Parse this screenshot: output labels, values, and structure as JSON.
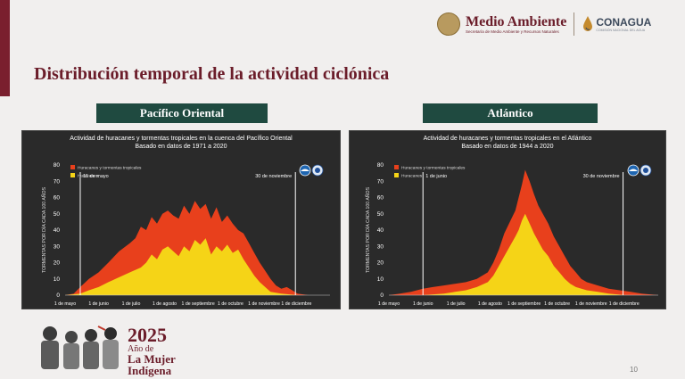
{
  "header": {
    "ministry": "Medio Ambiente",
    "ministry_sub": "Secretaría de Medio Ambiente y Recursos Naturales",
    "agency": "CONAGUA",
    "agency_sub": "COMISIÓN NACIONAL DEL AGUA"
  },
  "page_title": "Distribución temporal de la actividad ciclónica",
  "regions": [
    "Pacífico Oriental",
    "Atlántico"
  ],
  "colors": {
    "storms": "#e8401c",
    "hurricanes": "#f5d417",
    "accent": "#6b1d2a",
    "label_bg": "#1f4a40"
  },
  "chart_data": [
    {
      "type": "area",
      "title": "Actividad de huracanes y tormentas tropicales en la cuenca del Pacífico Oriental",
      "subtitle": "Basado en datos de 1971 a 2020",
      "ylabel": "TORMENTAS POR DÍA CADA 100 AÑOS",
      "ylim": [
        0,
        80
      ],
      "yticks": [
        0,
        10,
        20,
        30,
        40,
        50,
        60,
        70,
        80
      ],
      "xlim": [
        0,
        245
      ],
      "xticks": [
        {
          "day": 0,
          "label": "1 de mayo"
        },
        {
          "day": 31,
          "label": "1 de junio"
        },
        {
          "day": 61,
          "label": "1 de julio"
        },
        {
          "day": 92,
          "label": "1 de agosto"
        },
        {
          "day": 123,
          "label": "1 de septiembre"
        },
        {
          "day": 153,
          "label": "1 de octubre"
        },
        {
          "day": 184,
          "label": "1 de noviembre"
        },
        {
          "day": 214,
          "label": "1 de diciembre"
        }
      ],
      "markers": [
        {
          "day": 14,
          "label": "15 de mayo"
        },
        {
          "day": 213,
          "label": "30 de noviembre"
        }
      ],
      "legend": [
        "Huracanes y tormentas tropicales",
        "Huracanes"
      ],
      "series": [
        {
          "name": "Huracanes y tormentas tropicales",
          "points": [
            [
              0,
              0
            ],
            [
              8,
              1
            ],
            [
              14,
              5
            ],
            [
              22,
              10
            ],
            [
              31,
              14
            ],
            [
              40,
              20
            ],
            [
              50,
              27
            ],
            [
              60,
              32
            ],
            [
              65,
              35
            ],
            [
              70,
              42
            ],
            [
              75,
              40
            ],
            [
              80,
              48
            ],
            [
              85,
              44
            ],
            [
              90,
              50
            ],
            [
              95,
              52
            ],
            [
              100,
              49
            ],
            [
              105,
              47
            ],
            [
              110,
              55
            ],
            [
              115,
              50
            ],
            [
              120,
              58
            ],
            [
              125,
              53
            ],
            [
              130,
              56
            ],
            [
              135,
              47
            ],
            [
              140,
              54
            ],
            [
              145,
              45
            ],
            [
              150,
              49
            ],
            [
              155,
              44
            ],
            [
              160,
              40
            ],
            [
              165,
              38
            ],
            [
              170,
              32
            ],
            [
              175,
              26
            ],
            [
              180,
              20
            ],
            [
              185,
              15
            ],
            [
              190,
              10
            ],
            [
              195,
              6
            ],
            [
              200,
              4
            ],
            [
              205,
              5
            ],
            [
              210,
              3
            ],
            [
              215,
              1
            ],
            [
              225,
              0
            ],
            [
              245,
              0
            ]
          ]
        },
        {
          "name": "Huracanes",
          "points": [
            [
              0,
              0
            ],
            [
              14,
              1
            ],
            [
              22,
              3
            ],
            [
              31,
              5
            ],
            [
              40,
              8
            ],
            [
              50,
              11
            ],
            [
              60,
              14
            ],
            [
              70,
              17
            ],
            [
              75,
              20
            ],
            [
              80,
              25
            ],
            [
              85,
              22
            ],
            [
              90,
              28
            ],
            [
              95,
              30
            ],
            [
              100,
              27
            ],
            [
              105,
              24
            ],
            [
              110,
              30
            ],
            [
              115,
              27
            ],
            [
              120,
              34
            ],
            [
              125,
              31
            ],
            [
              130,
              35
            ],
            [
              135,
              25
            ],
            [
              140,
              30
            ],
            [
              145,
              27
            ],
            [
              150,
              31
            ],
            [
              155,
              26
            ],
            [
              160,
              28
            ],
            [
              165,
              22
            ],
            [
              170,
              17
            ],
            [
              175,
              12
            ],
            [
              180,
              8
            ],
            [
              185,
              5
            ],
            [
              190,
              2
            ],
            [
              200,
              1
            ],
            [
              215,
              0
            ],
            [
              245,
              0
            ]
          ]
        }
      ]
    },
    {
      "type": "area",
      "title": "Actividad de huracanes y tormentas tropicales en el Atlántico",
      "subtitle": "Basado en datos de 1944 a 2020",
      "ylabel": "TORMENTAS POR DÍA CADA 100 AÑOS",
      "ylim": [
        0,
        80
      ],
      "yticks": [
        0,
        10,
        20,
        30,
        40,
        50,
        60,
        70,
        80
      ],
      "xlim": [
        0,
        245
      ],
      "xticks": [
        {
          "day": 0,
          "label": "1 de mayo"
        },
        {
          "day": 31,
          "label": "1 de junio"
        },
        {
          "day": 61,
          "label": "1 de julio"
        },
        {
          "day": 92,
          "label": "1 de agosto"
        },
        {
          "day": 123,
          "label": "1 de septiembre"
        },
        {
          "day": 153,
          "label": "1 de octubre"
        },
        {
          "day": 184,
          "label": "1 de noviembre"
        },
        {
          "day": 214,
          "label": "1 de diciembre"
        }
      ],
      "markers": [
        {
          "day": 31,
          "label": "1 de junio"
        },
        {
          "day": 213,
          "label": "30 de noviembre"
        }
      ],
      "legend": [
        "Huracanes y tormentas tropicales",
        "Huracanes"
      ],
      "series": [
        {
          "name": "Huracanes y tormentas tropicales",
          "points": [
            [
              0,
              0
            ],
            [
              10,
              1
            ],
            [
              20,
              2
            ],
            [
              31,
              4
            ],
            [
              40,
              5
            ],
            [
              50,
              6
            ],
            [
              60,
              7
            ],
            [
              70,
              8
            ],
            [
              80,
              10
            ],
            [
              90,
              14
            ],
            [
              95,
              20
            ],
            [
              100,
              28
            ],
            [
              105,
              38
            ],
            [
              110,
              45
            ],
            [
              115,
              52
            ],
            [
              118,
              60
            ],
            [
              121,
              68
            ],
            [
              124,
              77
            ],
            [
              128,
              70
            ],
            [
              132,
              62
            ],
            [
              136,
              55
            ],
            [
              140,
              50
            ],
            [
              145,
              44
            ],
            [
              150,
              36
            ],
            [
              155,
              30
            ],
            [
              160,
              24
            ],
            [
              165,
              18
            ],
            [
              170,
              14
            ],
            [
              175,
              10
            ],
            [
              180,
              8
            ],
            [
              190,
              6
            ],
            [
              200,
              4
            ],
            [
              210,
              3
            ],
            [
              220,
              2
            ],
            [
              230,
              1
            ],
            [
              245,
              0
            ]
          ]
        },
        {
          "name": "Huracanes",
          "points": [
            [
              0,
              0
            ],
            [
              31,
              0
            ],
            [
              50,
              1
            ],
            [
              60,
              2
            ],
            [
              70,
              3
            ],
            [
              80,
              5
            ],
            [
              90,
              8
            ],
            [
              95,
              12
            ],
            [
              100,
              18
            ],
            [
              105,
              24
            ],
            [
              110,
              30
            ],
            [
              115,
              36
            ],
            [
              118,
              40
            ],
            [
              121,
              46
            ],
            [
              124,
              50
            ],
            [
              128,
              44
            ],
            [
              132,
              38
            ],
            [
              136,
              33
            ],
            [
              140,
              28
            ],
            [
              145,
              24
            ],
            [
              150,
              18
            ],
            [
              155,
              14
            ],
            [
              160,
              10
            ],
            [
              165,
              7
            ],
            [
              170,
              5
            ],
            [
              180,
              3
            ],
            [
              190,
              2
            ],
            [
              200,
              1
            ],
            [
              215,
              0
            ],
            [
              245,
              0
            ]
          ]
        }
      ]
    }
  ],
  "footer": {
    "year": "2025",
    "line1": "Año de",
    "line2": "La Mujer",
    "line3": "Indígena"
  },
  "page_number": "10"
}
